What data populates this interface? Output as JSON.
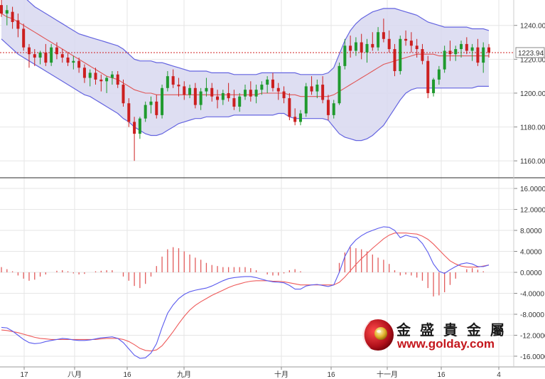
{
  "chart_data": [
    {
      "type": "candlestick",
      "indicator": "bollinger-bands",
      "ylim": [
        1150,
        1255
      ],
      "y_ticks": [
        "1240.00",
        "1220.00",
        "1200.00",
        "1180.00",
        "1160.00"
      ],
      "x_tick_labels": [
        "17",
        "八月",
        "16",
        "九月",
        "十月",
        "16",
        "十一月",
        "16",
        "4"
      ],
      "last_price": "1223.94",
      "grid": true,
      "colors": {
        "up": "#1f9a2e",
        "down": "#cc1f1f",
        "band": "#6464e0",
        "band_fill": "#d8d8f0",
        "middle": "#e05555",
        "price_line": "#d02020"
      },
      "ohlc": [
        [
          1252,
          1256,
          1245,
          1247
        ],
        [
          1247,
          1252,
          1240,
          1249
        ],
        [
          1248,
          1251,
          1238,
          1242
        ],
        [
          1243,
          1247,
          1233,
          1238
        ],
        [
          1238,
          1241,
          1225,
          1227
        ],
        [
          1227,
          1229,
          1215,
          1223
        ],
        [
          1223,
          1226,
          1216,
          1221
        ],
        [
          1221,
          1225,
          1217,
          1224
        ],
        [
          1224,
          1229,
          1216,
          1218
        ],
        [
          1218,
          1229,
          1216,
          1227
        ],
        [
          1227,
          1230,
          1220,
          1223
        ],
        [
          1223,
          1226,
          1218,
          1221
        ],
        [
          1221,
          1224,
          1216,
          1218
        ],
        [
          1218,
          1222,
          1214,
          1219
        ],
        [
          1219,
          1221,
          1212,
          1215
        ],
        [
          1215,
          1217,
          1206,
          1209
        ],
        [
          1209,
          1214,
          1204,
          1212
        ],
        [
          1212,
          1215,
          1205,
          1208
        ],
        [
          1208,
          1211,
          1201,
          1207
        ],
        [
          1207,
          1210,
          1200,
          1209
        ],
        [
          1209,
          1213,
          1205,
          1211
        ],
        [
          1211,
          1213,
          1203,
          1205
        ],
        [
          1205,
          1208,
          1192,
          1194
        ],
        [
          1194,
          1197,
          1180,
          1183
        ],
        [
          1183,
          1186,
          1160,
          1176
        ],
        [
          1176,
          1186,
          1173,
          1185
        ],
        [
          1185,
          1195,
          1183,
          1193
        ],
        [
          1193,
          1198,
          1188,
          1195
        ],
        [
          1195,
          1199,
          1185,
          1187
        ],
        [
          1187,
          1205,
          1185,
          1203
        ],
        [
          1203,
          1213,
          1201,
          1210
        ],
        [
          1210,
          1214,
          1203,
          1205
        ],
        [
          1205,
          1209,
          1198,
          1204
        ],
        [
          1204,
          1207,
          1196,
          1199
        ],
        [
          1199,
          1205,
          1197,
          1203
        ],
        [
          1203,
          1206,
          1191,
          1193
        ],
        [
          1193,
          1203,
          1190,
          1201
        ],
        [
          1201,
          1209,
          1198,
          1203
        ],
        [
          1203,
          1206,
          1195,
          1198
        ],
        [
          1198,
          1202,
          1191,
          1196
        ],
        [
          1196,
          1202,
          1193,
          1200
        ],
        [
          1200,
          1206,
          1195,
          1197
        ],
        [
          1197,
          1202,
          1190,
          1192
        ],
        [
          1192,
          1200,
          1189,
          1198
        ],
        [
          1198,
          1205,
          1196,
          1202
        ],
        [
          1202,
          1207,
          1195,
          1198
        ],
        [
          1198,
          1205,
          1194,
          1202
        ],
        [
          1202,
          1207,
          1199,
          1205
        ],
        [
          1205,
          1210,
          1200,
          1208
        ],
        [
          1208,
          1212,
          1201,
          1203
        ],
        [
          1203,
          1206,
          1196,
          1201
        ],
        [
          1201,
          1204,
          1194,
          1197
        ],
        [
          1197,
          1200,
          1184,
          1186
        ],
        [
          1186,
          1191,
          1181,
          1183
        ],
        [
          1183,
          1190,
          1181,
          1188
        ],
        [
          1188,
          1206,
          1186,
          1204
        ],
        [
          1204,
          1210,
          1199,
          1201
        ],
        [
          1201,
          1208,
          1197,
          1205
        ],
        [
          1205,
          1210,
          1194,
          1196
        ],
        [
          1196,
          1199,
          1184,
          1187
        ],
        [
          1187,
          1196,
          1185,
          1194
        ],
        [
          1194,
          1218,
          1193,
          1216
        ],
        [
          1216,
          1232,
          1214,
          1228
        ],
        [
          1228,
          1234,
          1221,
          1225
        ],
        [
          1225,
          1233,
          1222,
          1230
        ],
        [
          1230,
          1235,
          1220,
          1224
        ],
        [
          1224,
          1232,
          1218,
          1229
        ],
        [
          1229,
          1236,
          1225,
          1227
        ],
        [
          1227,
          1239,
          1225,
          1236
        ],
        [
          1236,
          1244,
          1230,
          1232
        ],
        [
          1232,
          1237,
          1224,
          1226
        ],
        [
          1226,
          1229,
          1210,
          1213
        ],
        [
          1213,
          1234,
          1211,
          1232
        ],
        [
          1232,
          1237,
          1228,
          1231
        ],
        [
          1231,
          1236,
          1224,
          1228
        ],
        [
          1228,
          1232,
          1221,
          1226
        ],
        [
          1226,
          1229,
          1217,
          1219
        ],
        [
          1219,
          1222,
          1197,
          1200
        ],
        [
          1200,
          1209,
          1198,
          1208
        ],
        [
          1208,
          1216,
          1205,
          1214
        ],
        [
          1214,
          1228,
          1212,
          1225
        ],
        [
          1225,
          1231,
          1219,
          1223
        ],
        [
          1223,
          1228,
          1219,
          1226
        ],
        [
          1226,
          1231,
          1221,
          1229
        ],
        [
          1229,
          1233,
          1223,
          1225
        ],
        [
          1225,
          1229,
          1219,
          1227
        ],
        [
          1227,
          1232,
          1216,
          1218
        ],
        [
          1218,
          1230,
          1212,
          1227
        ],
        [
          1227,
          1229,
          1221,
          1224
        ]
      ],
      "bands": {
        "upper": [
          1262,
          1262,
          1261,
          1259,
          1257,
          1254,
          1251,
          1249,
          1247,
          1245,
          1243,
          1241,
          1239,
          1237,
          1235,
          1234,
          1233,
          1232,
          1231,
          1230,
          1229,
          1228,
          1226,
          1223,
          1220,
          1219,
          1219,
          1219,
          1218,
          1218,
          1217,
          1216,
          1215,
          1214,
          1213,
          1213,
          1213,
          1213,
          1212,
          1212,
          1212,
          1212,
          1211,
          1211,
          1211,
          1211,
          1211,
          1212,
          1212,
          1212,
          1212,
          1212,
          1212,
          1212,
          1211,
          1211,
          1211,
          1211,
          1211,
          1212,
          1215,
          1223,
          1231,
          1237,
          1241,
          1244,
          1246,
          1248,
          1249,
          1250,
          1250,
          1250,
          1249,
          1248,
          1247,
          1246,
          1244,
          1242,
          1241,
          1240,
          1239,
          1239,
          1239,
          1239,
          1239,
          1238,
          1238,
          1238,
          1237
        ],
        "middle": [
          1247,
          1245,
          1244,
          1242,
          1240,
          1238,
          1236,
          1234,
          1232,
          1230,
          1228,
          1226,
          1224,
          1222,
          1220,
          1218,
          1216,
          1214,
          1212,
          1210,
          1209,
          1208,
          1206,
          1204,
          1202,
          1201,
          1200,
          1200,
          1199,
          1199,
          1199,
          1199,
          1199,
          1199,
          1199,
          1199,
          1199,
          1199,
          1199,
          1199,
          1199,
          1199,
          1199,
          1199,
          1199,
          1199,
          1199,
          1200,
          1200,
          1200,
          1200,
          1200,
          1199,
          1199,
          1198,
          1198,
          1198,
          1198,
          1198,
          1198,
          1199,
          1201,
          1203,
          1205,
          1207,
          1209,
          1211,
          1213,
          1215,
          1217,
          1218,
          1219,
          1220,
          1221,
          1222,
          1223,
          1223,
          1223,
          1223,
          1222,
          1222,
          1222,
          1222,
          1222,
          1222,
          1222,
          1222,
          1222,
          1222
        ],
        "lower": [
          1232,
          1229,
          1226,
          1223,
          1221,
          1219,
          1217,
          1215,
          1213,
          1211,
          1209,
          1207,
          1205,
          1203,
          1201,
          1199,
          1198,
          1196,
          1194,
          1192,
          1190,
          1188,
          1185,
          1183,
          1180,
          1178,
          1176,
          1175,
          1175,
          1176,
          1178,
          1180,
          1182,
          1183,
          1184,
          1185,
          1185,
          1186,
          1186,
          1186,
          1186,
          1186,
          1187,
          1187,
          1187,
          1187,
          1187,
          1187,
          1187,
          1187,
          1188,
          1188,
          1186,
          1185,
          1185,
          1185,
          1185,
          1185,
          1185,
          1184,
          1180,
          1176,
          1174,
          1173,
          1172,
          1172,
          1173,
          1175,
          1178,
          1181,
          1186,
          1191,
          1196,
          1200,
          1202,
          1203,
          1203,
          1203,
          1203,
          1203,
          1203,
          1203,
          1203,
          1203,
          1203,
          1203,
          1204,
          1204,
          1204
        ]
      }
    },
    {
      "type": "macd",
      "ylim": [
        -17.5,
        17.5
      ],
      "y_ticks": [
        "16.0000",
        "12.0000",
        "8.0000",
        "4.0000",
        "0.0000",
        "-4.0000",
        "-8.0000",
        "-12.0000",
        "-16.0000"
      ],
      "grid": true,
      "colors": {
        "macd": "#5a5aee",
        "signal": "#ee5a5a",
        "histogram": "#e25c5c"
      },
      "macd": [
        -10.5,
        -10.6,
        -11.2,
        -12.0,
        -12.8,
        -13.4,
        -13.6,
        -13.5,
        -13.2,
        -13.0,
        -12.8,
        -12.6,
        -12.7,
        -12.9,
        -13.0,
        -13.0,
        -12.9,
        -12.7,
        -12.5,
        -12.4,
        -12.3,
        -12.6,
        -13.4,
        -14.6,
        -15.8,
        -16.4,
        -16.3,
        -15.4,
        -13.6,
        -10.5,
        -7.8,
        -6.2,
        -5.0,
        -4.2,
        -3.7,
        -3.4,
        -3.2,
        -3.0,
        -2.6,
        -2.1,
        -1.6,
        -1.2,
        -1.0,
        -0.9,
        -0.8,
        -0.8,
        -1.0,
        -1.3,
        -1.6,
        -1.8,
        -1.9,
        -2.0,
        -2.5,
        -3.2,
        -3.2,
        -2.6,
        -2.4,
        -2.3,
        -2.5,
        -2.7,
        -2.4,
        0.0,
        3.0,
        5.0,
        6.2,
        7.0,
        7.6,
        8.0,
        8.4,
        8.7,
        8.6,
        8.0,
        6.6,
        7.1,
        6.8,
        6.6,
        5.5,
        3.8,
        1.6,
        0.2,
        -0.2,
        0.5,
        1.1,
        1.6,
        1.8,
        1.6,
        1.1,
        1.1,
        1.4
      ],
      "signal": [
        -11.0,
        -11.1,
        -11.3,
        -11.5,
        -11.8,
        -12.1,
        -12.4,
        -12.6,
        -12.7,
        -12.8,
        -12.8,
        -12.8,
        -12.8,
        -12.8,
        -12.8,
        -12.8,
        -12.8,
        -12.8,
        -12.7,
        -12.6,
        -12.6,
        -12.6,
        -12.8,
        -13.2,
        -13.8,
        -14.5,
        -14.9,
        -15.0,
        -14.8,
        -14.0,
        -12.7,
        -11.3,
        -9.8,
        -8.4,
        -7.2,
        -6.3,
        -5.6,
        -5.0,
        -4.4,
        -3.9,
        -3.4,
        -2.9,
        -2.5,
        -2.2,
        -1.9,
        -1.7,
        -1.6,
        -1.6,
        -1.6,
        -1.7,
        -1.7,
        -1.8,
        -2.0,
        -2.2,
        -2.4,
        -2.4,
        -2.4,
        -2.4,
        -2.4,
        -2.4,
        -2.4,
        -1.9,
        -0.9,
        0.3,
        1.5,
        2.6,
        3.6,
        4.6,
        5.5,
        6.4,
        7.1,
        7.5,
        7.5,
        7.5,
        7.4,
        7.3,
        6.9,
        6.3,
        5.4,
        4.3,
        3.2,
        2.2,
        1.6,
        1.2,
        1.0,
        1.0,
        1.0,
        1.2,
        1.4
      ],
      "histogram": [
        1.0,
        0.6,
        0.2,
        -0.6,
        -1.2,
        -1.6,
        -1.4,
        -0.8,
        -0.4,
        0.0,
        0.3,
        0.4,
        0.2,
        -0.2,
        -0.4,
        -0.3,
        0.0,
        0.2,
        0.3,
        0.4,
        0.4,
        0.0,
        -0.8,
        -1.6,
        -2.6,
        -3.0,
        -2.2,
        -0.8,
        1.2,
        3.0,
        4.4,
        4.8,
        4.6,
        4.0,
        3.4,
        2.8,
        2.4,
        1.8,
        1.4,
        1.2,
        1.0,
        1.0,
        1.0,
        1.0,
        1.0,
        0.8,
        0.4,
        0.0,
        -0.4,
        -0.6,
        -0.6,
        -0.2,
        0.4,
        0.6,
        0.2,
        0.0,
        0.0,
        0.0,
        0.0,
        0.0,
        0.0,
        1.8,
        3.8,
        4.8,
        4.6,
        4.4,
        4.0,
        3.4,
        2.8,
        2.4,
        1.6,
        0.4,
        -0.6,
        -0.4,
        -0.6,
        -1.0,
        -1.6,
        -3.0,
        -4.6,
        -4.4,
        -3.8,
        -2.4,
        -1.2,
        0.0,
        0.6,
        0.8,
        0.5,
        0.2,
        0.0
      ]
    }
  ],
  "x_axis": {
    "labels": [
      "17",
      "八月",
      "16",
      "九月",
      "十月",
      "16",
      "十一月",
      "16",
      "4"
    ]
  },
  "watermark": {
    "company": "金 盛 貴 金 屬",
    "url": "www.golday.com",
    "logo_icon": "golday-logo-icon",
    "accent": "#c4161c"
  }
}
